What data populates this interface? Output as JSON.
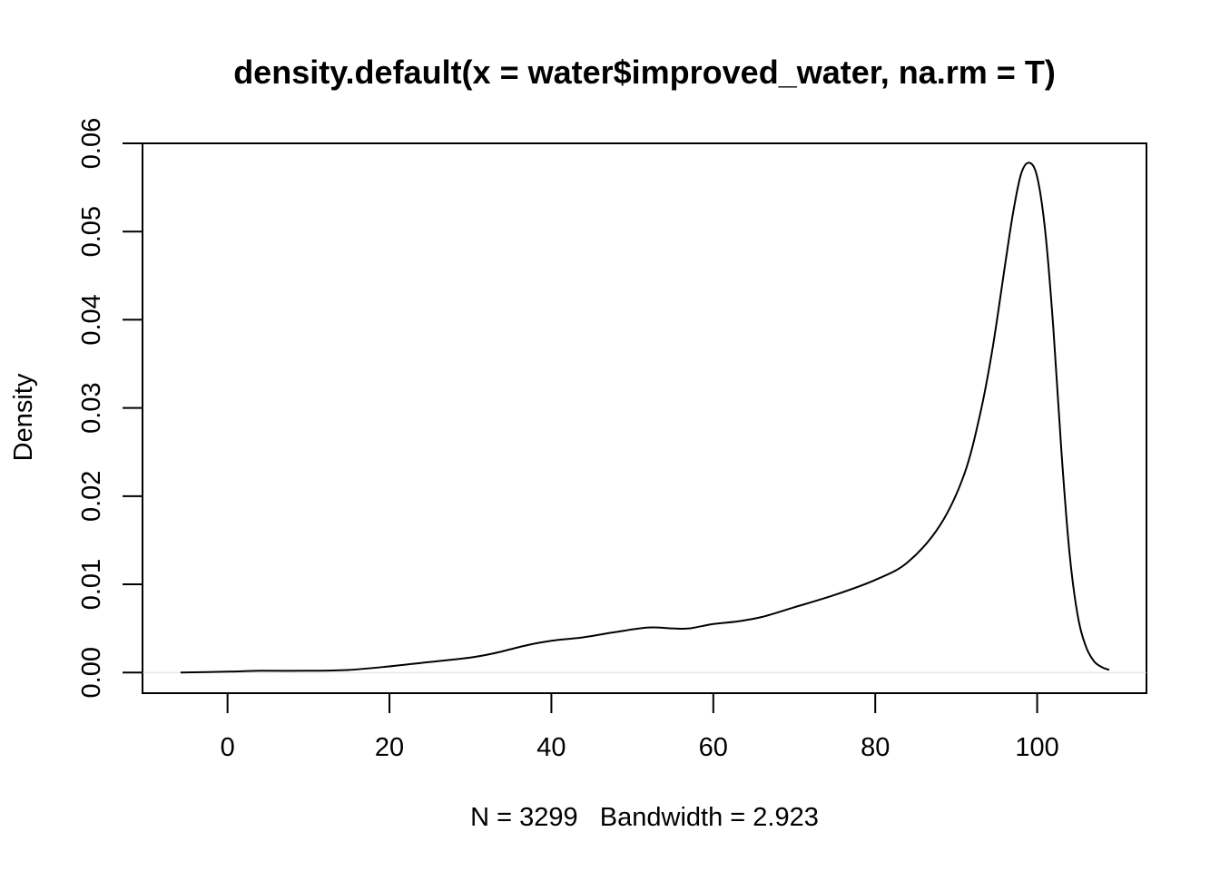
{
  "chart_data": {
    "type": "line",
    "title": "density.default(x = water$improved_water, na.rm = T)",
    "xlabel": "N = 3299   Bandwidth = 2.923",
    "ylabel": "Density",
    "xlim": [
      -10.5,
      113.5
    ],
    "ylim": [
      -0.00234,
      0.06
    ],
    "x_ticks": [
      0,
      20,
      40,
      60,
      80,
      100
    ],
    "y_ticks": [
      0.0,
      0.01,
      0.02,
      0.03,
      0.04,
      0.05,
      0.06
    ],
    "x_tick_labels": [
      "0",
      "20",
      "40",
      "60",
      "80",
      "100"
    ],
    "y_tick_labels": [
      "0.00",
      "0.01",
      "0.02",
      "0.03",
      "0.04",
      "0.05",
      "0.06"
    ],
    "baseline": 0,
    "grid": false,
    "legend": "none",
    "series": [
      {
        "x": [
          -5.8,
          0,
          4,
          10,
          15,
          20,
          25,
          30,
          33,
          37,
          40,
          44,
          48,
          52,
          55,
          57,
          60,
          63,
          66,
          70,
          75,
          80,
          84,
          88,
          91,
          93,
          94.5,
          96,
          97,
          98,
          99,
          100,
          101,
          102,
          103,
          104,
          105,
          106,
          107,
          108,
          108.9
        ],
        "values": [
          0.0,
          0.0001,
          0.0002,
          0.0002,
          0.0003,
          0.0007,
          0.0012,
          0.0017,
          0.0022,
          0.0031,
          0.0036,
          0.004,
          0.0046,
          0.0051,
          0.005,
          0.005,
          0.0055,
          0.0058,
          0.0063,
          0.0074,
          0.0088,
          0.0105,
          0.0125,
          0.0167,
          0.0225,
          0.0295,
          0.0368,
          0.046,
          0.052,
          0.0565,
          0.0578,
          0.0562,
          0.05,
          0.039,
          0.025,
          0.0135,
          0.0065,
          0.003,
          0.0013,
          0.0006,
          0.0003
        ]
      }
    ]
  }
}
